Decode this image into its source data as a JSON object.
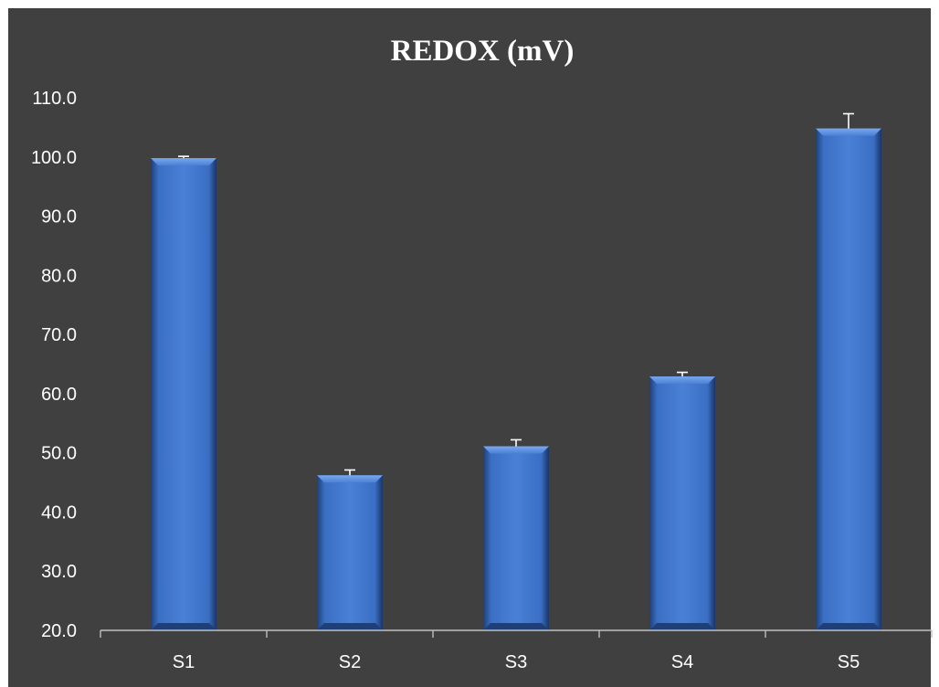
{
  "chart_data": {
    "type": "bar",
    "title": "REDOX (mV)",
    "xlabel": "",
    "ylabel": "",
    "categories": [
      "S1",
      "S2",
      "S3",
      "S4",
      "S5"
    ],
    "values": [
      99.8,
      46.2,
      51.1,
      62.9,
      104.8
    ],
    "errors": [
      0.3,
      0.9,
      1.1,
      0.7,
      2.5
    ],
    "ylim": [
      20,
      110
    ],
    "yticks": [
      "20.0",
      "30.0",
      "40.0",
      "50.0",
      "60.0",
      "70.0",
      "80.0",
      "90.0",
      "100.0",
      "110.0"
    ],
    "grid": false,
    "legend": "none",
    "colors": {
      "background": "#404040",
      "bar_main": "#3a6fc4",
      "bar_light": "#5b8fe0",
      "bar_dark": "#1f3f78",
      "text": "#ffffff",
      "axis": "#bfbfbf"
    }
  }
}
